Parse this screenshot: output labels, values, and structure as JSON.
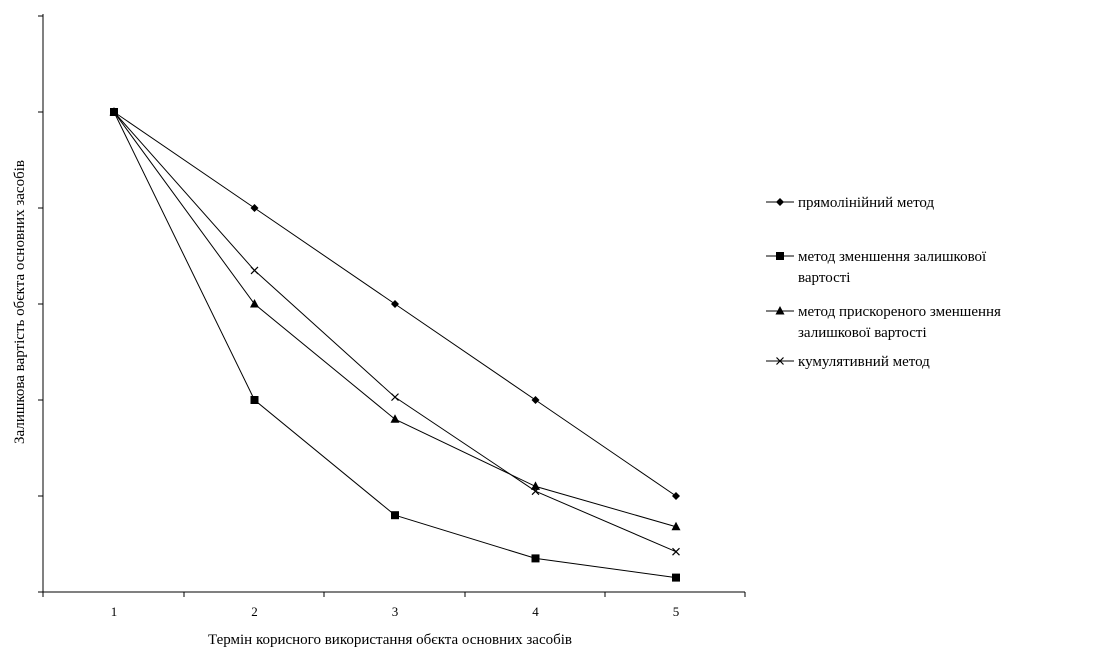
{
  "chart_data": {
    "type": "line",
    "title": "",
    "xlabel": "Термін корисного використання обєкта основних засобів",
    "ylabel": "Залишкова вартість обєкта основних засобів",
    "x": [
      1,
      2,
      3,
      4,
      5
    ],
    "ylim": [
      0,
      6
    ],
    "ytick_count": 7,
    "y_tick_labels_visible": false,
    "grid": false,
    "legend_position": "right",
    "series": [
      {
        "name": "прямолінійний метод",
        "marker": "diamond",
        "values": [
          5,
          4,
          3,
          2,
          1
        ]
      },
      {
        "name": "метод зменшення залишкової вартості",
        "marker": "square",
        "values": [
          5,
          2,
          0.8,
          0.35,
          0.15
        ]
      },
      {
        "name": "метод прискореного зменшення залишкової вартості",
        "marker": "triangle",
        "values": [
          5,
          3,
          1.8,
          1.1,
          0.68
        ]
      },
      {
        "name": "кумулятивний метод",
        "marker": "x",
        "values": [
          5,
          3.35,
          2.03,
          1.05,
          0.42
        ]
      }
    ]
  }
}
